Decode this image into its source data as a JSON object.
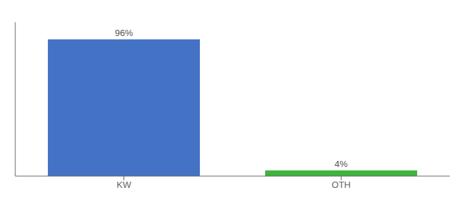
{
  "chart_data": {
    "type": "bar",
    "categories": [
      "KW",
      "OTH"
    ],
    "values": [
      96,
      4
    ],
    "value_labels": [
      "96%",
      "4%"
    ],
    "data_labels": true,
    "colors": [
      "#4472c4",
      "#3db53d"
    ],
    "ylim": [
      0,
      108
    ],
    "tick_labels": "x",
    "grid": false
  }
}
